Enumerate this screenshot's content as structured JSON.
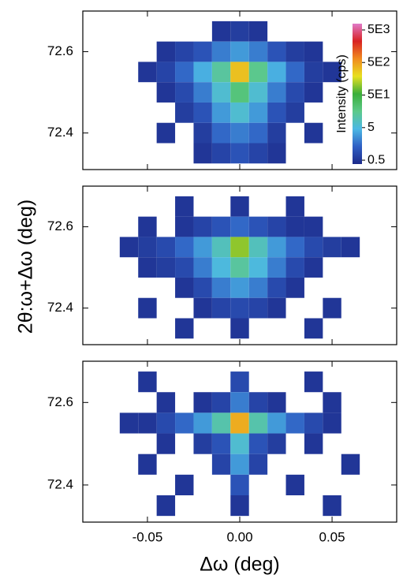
{
  "chart_data": [
    {
      "type": "heatmap",
      "x": [
        -0.06,
        -0.05,
        -0.04,
        -0.03,
        -0.02,
        -0.01,
        0.0,
        0.01,
        0.02,
        0.03,
        0.04,
        0.05,
        0.06
      ],
      "y": [
        72.65,
        72.6,
        72.55,
        72.5,
        72.45,
        72.4,
        72.35
      ],
      "z": [
        [
          null,
          null,
          null,
          null,
          null,
          0.5,
          0.6,
          0.5,
          null,
          null,
          null,
          null,
          null
        ],
        [
          null,
          null,
          0.5,
          0.7,
          1,
          2,
          3,
          2,
          1,
          0.6,
          0.5,
          null,
          null
        ],
        [
          null,
          0.5,
          0.7,
          1.5,
          4,
          12,
          300,
          15,
          4,
          1.5,
          0.6,
          0.5,
          null
        ],
        [
          null,
          null,
          0.5,
          0.8,
          2,
          6,
          20,
          6,
          2,
          0.8,
          0.5,
          null,
          null
        ],
        [
          null,
          null,
          null,
          0.6,
          1,
          3,
          6,
          3,
          1,
          0.6,
          null,
          null,
          null
        ],
        [
          null,
          null,
          0.5,
          null,
          0.6,
          1.5,
          2,
          1.5,
          0.6,
          null,
          0.5,
          null,
          null
        ],
        [
          null,
          null,
          null,
          null,
          0.5,
          0.7,
          1,
          0.7,
          0.5,
          null,
          null,
          null,
          null
        ]
      ],
      "xlim": [
        -0.085,
        0.085
      ],
      "ylim": [
        72.31,
        72.7
      ],
      "xticks": [
        -0.05,
        {
          "value": 0,
          "label": "0.00"
        },
        0.05
      ],
      "yticks": [
        72.4,
        72.6
      ],
      "colorbar": {
        "label": "Intensity (cps)",
        "lim": [
          0.38,
          7800
        ],
        "log": true,
        "ticks": [
          0.5,
          5,
          {
            "value": 50,
            "label": "5E1"
          },
          {
            "value": 500,
            "label": "5E2"
          },
          {
            "value": 5000,
            "label": "5E3"
          }
        ],
        "colors": [
          "#1d2a8a",
          "#2f5fc4",
          "#4cb8e4",
          "#5cc98a",
          "#3aae3a",
          "#e8e020",
          "#f08a20",
          "#d82222",
          "#e07ac8"
        ]
      }
    },
    {
      "type": "heatmap",
      "x": [
        -0.06,
        -0.05,
        -0.04,
        -0.03,
        -0.02,
        -0.01,
        0.0,
        0.01,
        0.02,
        0.03,
        0.04,
        0.05,
        0.06
      ],
      "y": [
        72.65,
        72.6,
        72.55,
        72.5,
        72.45,
        72.4,
        72.35
      ],
      "z": [
        [
          null,
          null,
          null,
          0.5,
          null,
          null,
          0.5,
          null,
          null,
          0.5,
          null,
          null,
          null
        ],
        [
          null,
          0.5,
          null,
          0.5,
          0.7,
          1,
          1.5,
          1,
          0.7,
          0.5,
          0.5,
          null,
          null
        ],
        [
          0.5,
          0.6,
          0.8,
          1.5,
          3,
          8,
          100,
          8,
          3,
          1.5,
          0.8,
          0.6,
          0.5
        ],
        [
          null,
          0.5,
          0.6,
          0.8,
          2,
          5,
          12,
          5,
          2,
          0.8,
          0.5,
          null,
          null
        ],
        [
          null,
          null,
          null,
          0.5,
          0.8,
          2,
          3,
          2,
          0.8,
          0.5,
          null,
          null,
          null
        ],
        [
          null,
          0.5,
          null,
          null,
          0.5,
          0.7,
          0.8,
          0.7,
          0.5,
          null,
          null,
          0.5,
          null
        ],
        [
          null,
          null,
          null,
          0.5,
          null,
          null,
          0.5,
          null,
          null,
          null,
          0.5,
          null,
          null
        ]
      ],
      "xlim": [
        -0.085,
        0.085
      ],
      "ylim": [
        72.31,
        72.7
      ],
      "xticks": [
        -0.05,
        {
          "value": 0,
          "label": "0.00"
        },
        0.05
      ],
      "yticks": [
        72.4,
        72.6
      ],
      "y_label": "2θ:ω+Δω (deg)"
    },
    {
      "type": "heatmap",
      "x": [
        -0.06,
        -0.05,
        -0.04,
        -0.03,
        -0.02,
        -0.01,
        0.0,
        0.01,
        0.02,
        0.03,
        0.04,
        0.05,
        0.06
      ],
      "y": [
        72.65,
        72.6,
        72.55,
        72.5,
        72.45,
        72.4,
        72.35
      ],
      "z": [
        [
          null,
          0.5,
          null,
          null,
          null,
          null,
          0.8,
          null,
          null,
          null,
          0.5,
          null,
          null
        ],
        [
          null,
          null,
          0.5,
          null,
          0.5,
          0.7,
          2,
          0.7,
          0.5,
          null,
          null,
          0.5,
          null
        ],
        [
          0.5,
          0.5,
          0.8,
          1.5,
          3,
          10,
          400,
          10,
          3,
          1.5,
          0.8,
          0.5,
          null
        ],
        [
          null,
          null,
          0.5,
          null,
          0.6,
          1,
          6,
          1,
          0.6,
          null,
          0.5,
          null,
          null
        ],
        [
          null,
          0.5,
          null,
          null,
          null,
          0.7,
          3,
          0.7,
          null,
          null,
          null,
          null,
          0.5
        ],
        [
          null,
          null,
          null,
          0.5,
          null,
          null,
          1,
          null,
          null,
          0.5,
          null,
          null,
          null
        ],
        [
          null,
          null,
          0.5,
          null,
          null,
          null,
          0.5,
          null,
          null,
          null,
          null,
          0.5,
          null
        ]
      ],
      "xlim": [
        -0.085,
        0.085
      ],
      "ylim": [
        72.31,
        72.7
      ],
      "xticks": [
        -0.05,
        {
          "value": 0,
          "label": "0.00"
        },
        0.05
      ],
      "yticks": [
        72.4,
        72.6
      ],
      "x_label": "Δω (deg)"
    }
  ]
}
